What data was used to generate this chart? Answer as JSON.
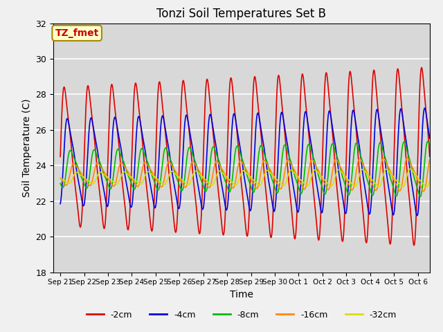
{
  "title": "Tonzi Soil Temperatures Set B",
  "xlabel": "Time",
  "ylabel": "Soil Temperature (C)",
  "ylim": [
    18,
    32
  ],
  "annotation_text": "TZ_fmet",
  "annotation_bg": "#ffffcc",
  "annotation_border": "#aa8800",
  "annotation_text_color": "#cc0000",
  "series": {
    "2cm": {
      "color": "#dd0000",
      "amp_start": 4.5,
      "amp_end": 5.8,
      "mean": 24.5,
      "phase": 0.0
    },
    "4cm": {
      "color": "#0000dd",
      "amp_start": 2.8,
      "amp_end": 3.5,
      "mean": 24.2,
      "phase": 0.13
    },
    "8cm": {
      "color": "#00bb00",
      "amp_start": 1.2,
      "amp_end": 1.8,
      "mean": 23.8,
      "phase": 0.26
    },
    "16cm": {
      "color": "#ff8800",
      "amp_start": 0.7,
      "amp_end": 1.1,
      "mean": 23.5,
      "phase": 0.4
    },
    "32cm": {
      "color": "#dddd00",
      "amp_start": 0.35,
      "amp_end": 0.6,
      "mean": 23.3,
      "phase": 0.52
    }
  },
  "xtick_labels": [
    "Sep 21",
    "Sep 22",
    "Sep 23",
    "Sep 24",
    "Sep 25",
    "Sep 26",
    "Sep 27",
    "Sep 28",
    "Sep 29",
    "Sep 30",
    "Oct 1",
    "Oct 2",
    "Oct 3",
    "Oct 4",
    "Oct 5",
    "Oct 6"
  ],
  "xtick_positions": [
    0,
    1,
    2,
    3,
    4,
    5,
    6,
    7,
    8,
    9,
    10,
    11,
    12,
    13,
    14,
    15
  ],
  "ytick_values": [
    18,
    20,
    22,
    24,
    26,
    28,
    30,
    32
  ],
  "n_points": 7200,
  "total_days": 15.5,
  "figsize": [
    6.4,
    4.8
  ],
  "dpi": 100,
  "fig_facecolor": "#f0f0f0",
  "ax_facecolor": "#d8d8d8",
  "grid_color": "#ffffff"
}
